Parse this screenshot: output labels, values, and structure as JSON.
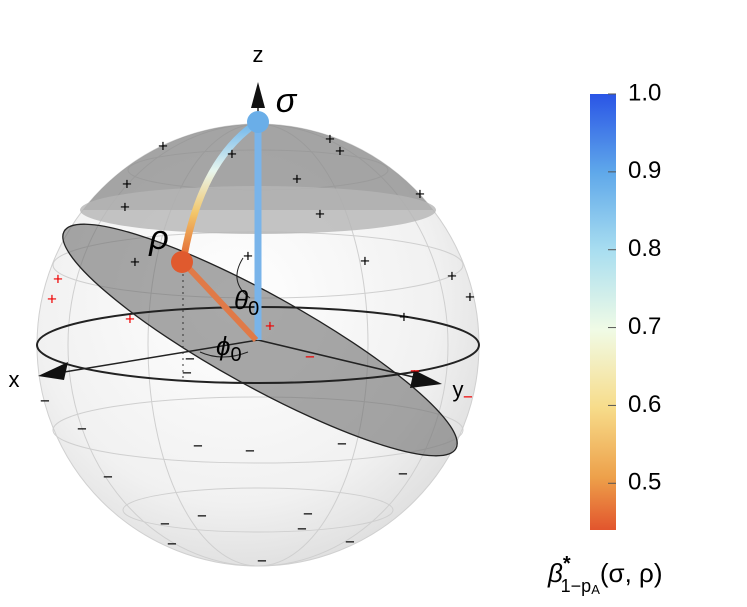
{
  "axes": {
    "x": "x",
    "y": "y",
    "z": "z"
  },
  "states": {
    "sigma": "σ",
    "rho": "ρ"
  },
  "angles": {
    "theta": {
      "symbol": "θ",
      "sub": "0"
    },
    "phi": {
      "symbol": "ϕ",
      "sub": "0"
    }
  },
  "signs": {
    "plus": "+",
    "minus": "−"
  },
  "colorbar": {
    "lim": [
      0.44,
      1.0
    ],
    "ticks": [
      {
        "value": 1,
        "label": "1.0"
      },
      0.9,
      0.8,
      0.7,
      0.6,
      0.5
    ],
    "label": {
      "base": "β",
      "sup": "*",
      "sub": "1−p",
      "subsub": "A",
      "args": "(σ, ρ)"
    }
  }
}
